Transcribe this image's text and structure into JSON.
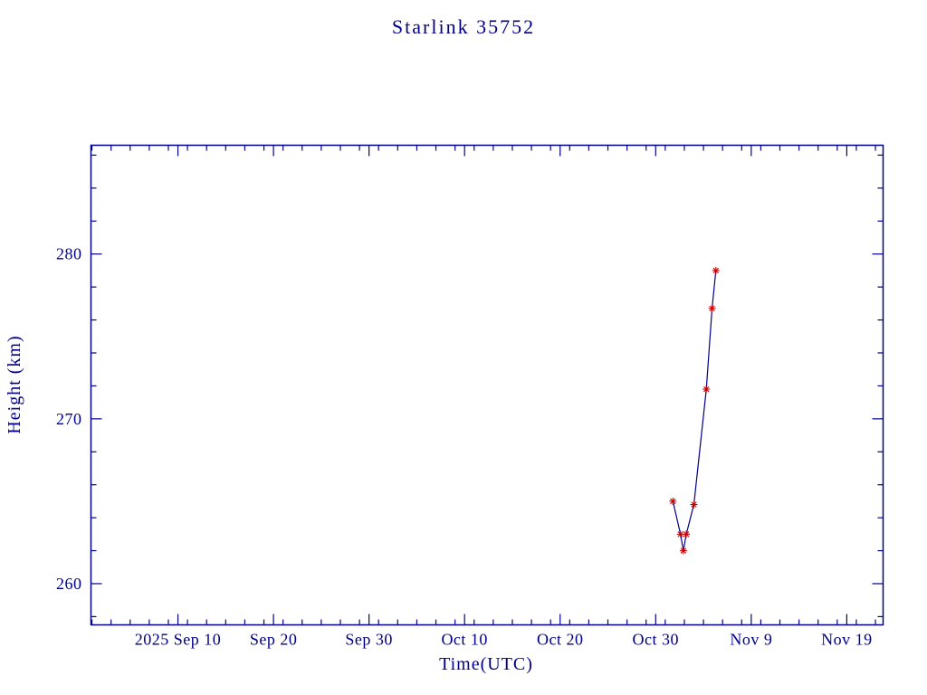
{
  "colors": {
    "axis": "#00008b",
    "line": "#00008b",
    "marker": "#cc0000",
    "background": "#ffffff"
  },
  "chart_data": {
    "type": "line",
    "title": "Starlink 35752",
    "xlabel": "Time(UTC)",
    "ylabel": "Height (km)",
    "legend": null,
    "grid": false,
    "marker": "asterisk",
    "x_unit": "days since 2025 Sep 1 (as labeled on axis)",
    "xlim_days": [
      -0.1,
      82.8
    ],
    "ylim": [
      257.5,
      286.6
    ],
    "x_ticks": [
      {
        "day": 9,
        "label": "2025 Sep 10"
      },
      {
        "day": 19,
        "label": "Sep 20"
      },
      {
        "day": 29,
        "label": "Sep 30"
      },
      {
        "day": 39,
        "label": "Oct 10"
      },
      {
        "day": 49,
        "label": "Oct 20"
      },
      {
        "day": 59,
        "label": "Oct 30"
      },
      {
        "day": 69,
        "label": "Nov 9"
      },
      {
        "day": 79,
        "label": "Nov 19"
      }
    ],
    "x_minor_tick_step_days": 2,
    "y_ticks": [
      260,
      270,
      280
    ],
    "y_minor_tick_step": 2,
    "points": [
      {
        "date": "Oct 31",
        "day": 60.8,
        "height_km": 265.0
      },
      {
        "date": "Nov 1",
        "day": 61.6,
        "height_km": 263.0
      },
      {
        "date": "Nov 1",
        "day": 61.9,
        "height_km": 262.0
      },
      {
        "date": "Nov 2",
        "day": 62.2,
        "height_km": 263.0
      },
      {
        "date": "Nov 3",
        "day": 63.0,
        "height_km": 264.8
      },
      {
        "date": "Nov 4",
        "day": 64.3,
        "height_km": 271.8
      },
      {
        "date": "Nov 5",
        "day": 64.9,
        "height_km": 276.7
      },
      {
        "date": "Nov 5",
        "day": 65.3,
        "height_km": 279.0
      }
    ]
  }
}
